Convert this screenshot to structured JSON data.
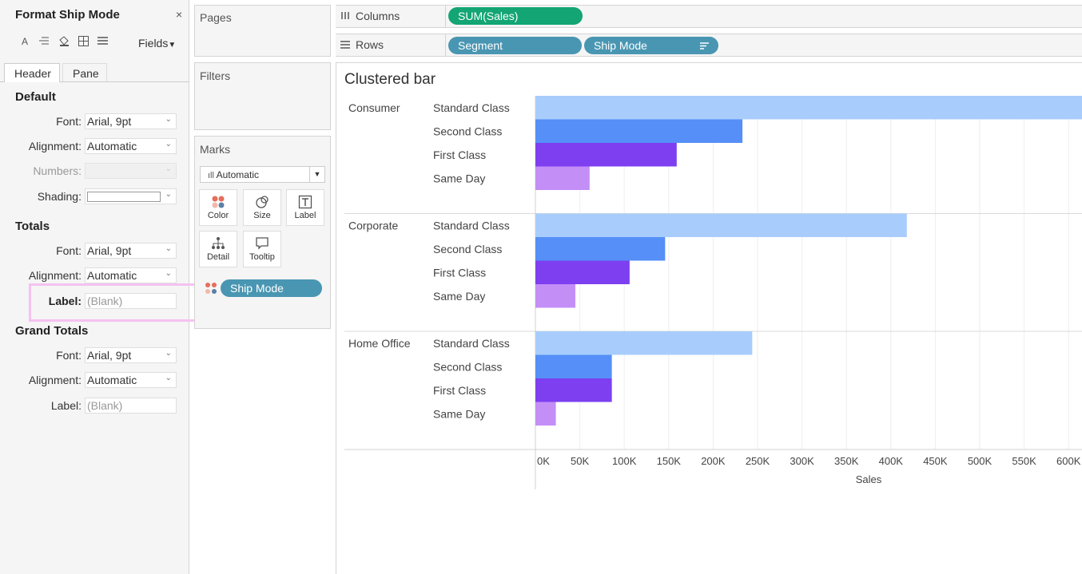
{
  "format_pane": {
    "title": "Format Ship Mode",
    "close": "×",
    "fields_label": "Fields",
    "toolbar_icons": [
      "font-icon",
      "align-icon",
      "shading-icon",
      "borders-icon",
      "lines-icon"
    ],
    "tabs": [
      "Header",
      "Pane"
    ],
    "active_tab": "Header",
    "default": {
      "title": "Default",
      "font_label": "Font:",
      "font_value": "Arial, 9pt",
      "alignment_label": "Alignment:",
      "alignment_value": "Automatic",
      "numbers_label": "Numbers:",
      "shading_label": "Shading:"
    },
    "totals": {
      "title": "Totals",
      "font_label": "Font:",
      "font_value": "Arial, 9pt",
      "alignment_label": "Alignment:",
      "alignment_value": "Automatic",
      "label_label": "Label:",
      "label_placeholder": "(Blank)"
    },
    "grand_totals": {
      "title": "Grand Totals",
      "font_label": "Font:",
      "font_value": "Arial, 9pt",
      "alignment_label": "Alignment:",
      "alignment_value": "Automatic",
      "label_label": "Label:",
      "label_placeholder": "(Blank)"
    },
    "highlight_color": "#f5c2f0"
  },
  "pages": {
    "title": "Pages"
  },
  "filters": {
    "title": "Filters"
  },
  "marks": {
    "title": "Marks",
    "type": "Automatic",
    "buttons": {
      "color": "Color",
      "size": "Size",
      "label": "Label",
      "detail": "Detail",
      "tooltip": "Tooltip"
    },
    "color_pill": "Ship Mode"
  },
  "shelves": {
    "columns_label": "Columns",
    "rows_label": "Rows",
    "columns_pills": [
      "SUM(Sales)"
    ],
    "rows_pills": [
      "Segment",
      "Ship Mode"
    ]
  },
  "view": {
    "title": "Clustered bar"
  },
  "chart_data": {
    "type": "bar",
    "orientation": "horizontal",
    "title": "Clustered bar",
    "xlabel": "Sales",
    "xlim": [
      0,
      620000
    ],
    "x_ticks": [
      "0K",
      "50K",
      "100K",
      "150K",
      "200K",
      "250K",
      "300K",
      "350K",
      "400K",
      "450K",
      "500K",
      "550K",
      "600K"
    ],
    "grid": "vertical",
    "groups": [
      "Consumer",
      "Corporate",
      "Home Office"
    ],
    "categories": [
      "Standard Class",
      "Second Class",
      "First Class",
      "Same Day"
    ],
    "colors": {
      "Standard Class": "#a8cdfd",
      "Second Class": "#558ff7",
      "First Class": "#7d3ff0",
      "Same Day": "#c48ef7"
    },
    "values": {
      "Consumer": [
        640000,
        233000,
        159000,
        61000
      ],
      "Corporate": [
        418000,
        146000,
        106000,
        45000
      ],
      "Home Office": [
        244000,
        86000,
        86000,
        23000
      ]
    }
  }
}
